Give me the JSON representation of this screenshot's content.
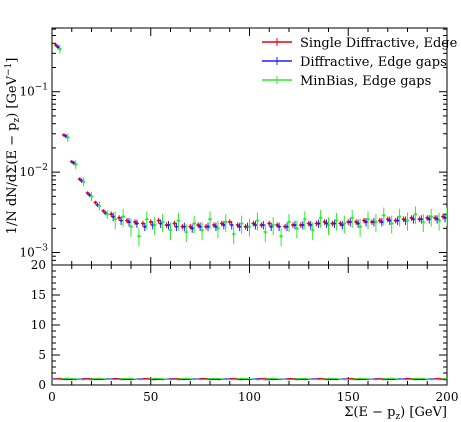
{
  "chart_data": [
    {
      "type": "scatter",
      "panel": "main",
      "title": "",
      "xlabel": "",
      "ylabel": "1/N dN/dΣ(E − p_z) [GeV⁻¹]",
      "ylabel_parts": {
        "prefix": "1/N dN/dΣ(E − p",
        "sub": "z",
        "mid": ") [GeV",
        "sup": "−1",
        "suffix": "]"
      },
      "xlim": [
        0,
        200
      ],
      "ylim": [
        0.0007,
        0.62
      ],
      "yscale": "log",
      "yticks": [
        {
          "value": 0.1,
          "label_base": "10",
          "label_exp": "−1"
        },
        {
          "value": 0.01,
          "label_base": "10",
          "label_exp": "−2"
        },
        {
          "value": 0.001,
          "label_base": "10",
          "label_exp": "−3"
        }
      ],
      "legend": "top-right",
      "grid": false,
      "series": [
        {
          "name": "Single Diffractive, Edge gaps",
          "color": "#e8000b",
          "x": [
            2,
            6,
            10,
            14,
            18,
            22,
            26,
            30,
            34,
            38,
            42,
            46,
            50,
            54,
            58,
            62,
            66,
            70,
            74,
            78,
            82,
            86,
            90,
            94,
            98,
            102,
            106,
            110,
            114,
            118,
            122,
            126,
            130,
            134,
            138,
            142,
            146,
            150,
            154,
            158,
            162,
            166,
            170,
            174,
            178,
            182,
            186,
            190,
            194,
            198
          ],
          "y": [
            0.38,
            0.029,
            0.0135,
            0.0082,
            0.0055,
            0.0042,
            0.0033,
            0.003,
            0.0027,
            0.0025,
            0.0024,
            0.0023,
            0.0024,
            0.0025,
            0.0022,
            0.0023,
            0.0021,
            0.0021,
            0.0022,
            0.0021,
            0.0022,
            0.0023,
            0.0024,
            0.0022,
            0.0021,
            0.0023,
            0.0022,
            0.0023,
            0.0022,
            0.0021,
            0.0022,
            0.0022,
            0.0023,
            0.0023,
            0.0024,
            0.0023,
            0.0023,
            0.0024,
            0.0024,
            0.0025,
            0.0024,
            0.0025,
            0.0026,
            0.0025,
            0.0026,
            0.0027,
            0.0026,
            0.0027,
            0.0027,
            0.0028
          ]
        },
        {
          "name": "Diffractive, Edge gaps",
          "color": "#1f1fff",
          "x": [
            3,
            7,
            11,
            15,
            19,
            23,
            27,
            31,
            35,
            39,
            43,
            47,
            51,
            55,
            59,
            63,
            67,
            71,
            75,
            79,
            83,
            87,
            91,
            95,
            99,
            103,
            107,
            111,
            115,
            119,
            123,
            127,
            131,
            135,
            139,
            143,
            147,
            151,
            155,
            159,
            163,
            167,
            171,
            175,
            179,
            183,
            187,
            191,
            195,
            199
          ],
          "y": [
            0.36,
            0.028,
            0.013,
            0.0078,
            0.0052,
            0.0039,
            0.0031,
            0.0028,
            0.0025,
            0.0024,
            0.0023,
            0.0021,
            0.0022,
            0.0023,
            0.0022,
            0.0021,
            0.0021,
            0.002,
            0.0021,
            0.0021,
            0.0021,
            0.0022,
            0.0022,
            0.0021,
            0.0021,
            0.0022,
            0.0022,
            0.0021,
            0.0021,
            0.0021,
            0.0022,
            0.0022,
            0.0022,
            0.0023,
            0.0023,
            0.0023,
            0.0022,
            0.0024,
            0.0023,
            0.0024,
            0.0024,
            0.0024,
            0.0025,
            0.0025,
            0.0025,
            0.0026,
            0.0026,
            0.0026,
            0.0026,
            0.0027
          ]
        },
        {
          "name": "MinBias, Edge gaps",
          "color": "#2ee82e",
          "x": [
            4,
            8,
            12,
            16,
            20,
            24,
            28,
            32,
            36,
            40,
            44,
            48,
            52,
            56,
            60,
            64,
            68,
            72,
            76,
            80,
            84,
            88,
            92,
            96,
            100,
            104,
            108,
            112,
            116,
            120,
            124,
            128,
            132,
            136,
            140,
            144,
            148,
            152,
            156,
            160,
            164,
            168,
            172,
            176,
            180,
            184,
            188,
            192,
            196,
            200
          ],
          "y": [
            0.34,
            0.027,
            0.0125,
            0.0076,
            0.005,
            0.0038,
            0.003,
            0.0026,
            0.0028,
            0.0021,
            0.0016,
            0.0026,
            0.0022,
            0.0024,
            0.0019,
            0.0025,
            0.0018,
            0.0023,
            0.0019,
            0.0026,
            0.002,
            0.0024,
            0.0017,
            0.0023,
            0.0021,
            0.0025,
            0.0018,
            0.0022,
            0.0016,
            0.0024,
            0.002,
            0.0026,
            0.0019,
            0.0027,
            0.0022,
            0.0025,
            0.0023,
            0.0027,
            0.0021,
            0.0026,
            0.0024,
            0.0029,
            0.0023,
            0.0028,
            0.0025,
            0.003,
            0.0024,
            0.0028,
            0.0025,
            0.0029
          ]
        }
      ],
      "rel_errors": [
        0.08,
        0.12,
        0.25
      ]
    },
    {
      "type": "line",
      "panel": "ratio",
      "title": "",
      "xlabel": "Σ(E − p_z) [GeV]",
      "xlabel_parts": {
        "prefix": "Σ(E − p",
        "sub": "z",
        "suffix": ") [GeV]"
      },
      "ylabel": "",
      "xlim": [
        0,
        200
      ],
      "ylim": [
        0,
        20
      ],
      "xticks": [
        0,
        50,
        100,
        150,
        200
      ],
      "yticks": [
        0,
        5,
        10,
        15,
        20
      ],
      "grid": false,
      "series": [
        {
          "name": "Single Diffractive, Edge gaps",
          "color": "#e8000b",
          "level": 1.0
        },
        {
          "name": "Diffractive, Edge gaps",
          "color": "#1f1fff",
          "level": 0.95
        },
        {
          "name": "MinBias, Edge gaps",
          "color": "#2ee82e",
          "level": 1.0
        }
      ]
    }
  ]
}
